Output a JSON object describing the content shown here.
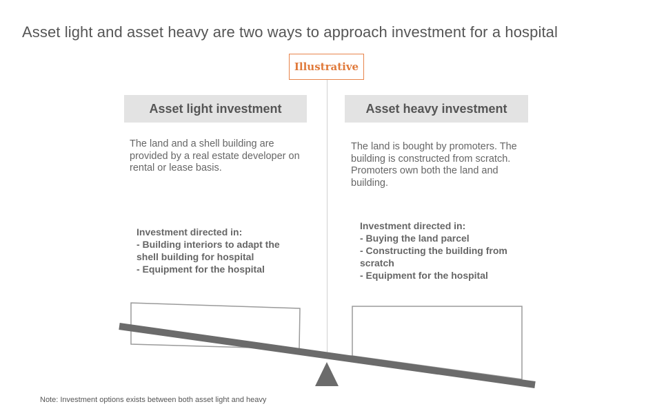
{
  "title": "Asset light and asset heavy are two ways to approach investment for a hospital",
  "tag": "Illustrative",
  "left": {
    "header": "Asset light investment",
    "description": "The land and a shell building are provided by a real estate developer on rental or lease basis.",
    "investment_heading": "Investment directed in:",
    "investment_items": [
      "- Building interiors to adapt the",
      "shell building for hospital",
      "- Equipment for the hospital"
    ]
  },
  "right": {
    "header": "Asset heavy investment",
    "description": "The land is bought by promoters. The building is constructed from scratch. Promoters own both the land and building.",
    "investment_heading": "Investment directed in:",
    "investment_items": [
      "- Buying the land parcel",
      "- Constructing the building from",
      "scratch",
      "- Equipment for the hospital"
    ]
  },
  "note": "Note: Investment options exists between both asset light and heavy",
  "colors": {
    "accent": "#e07a3b",
    "header_bg": "#e3e3e3",
    "beam": "#6b6b6b",
    "text": "#555555"
  }
}
